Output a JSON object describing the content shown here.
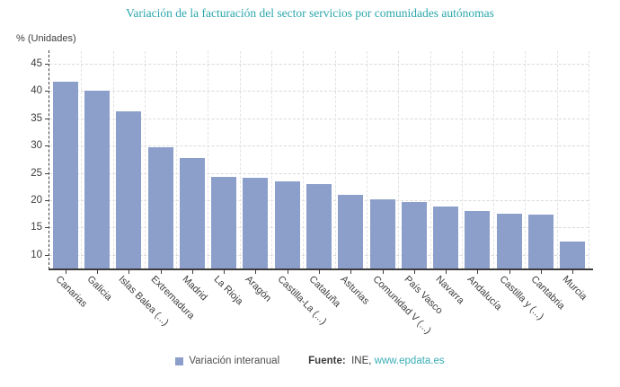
{
  "header": {
    "title": "Variación de la facturación del sector servicios por comunidades autónomas"
  },
  "source": {
    "label": "Fuente:",
    "org": "INE,",
    "link_text": "www.epdata.es"
  },
  "chart_data": {
    "type": "bar",
    "title": "Variación de la facturación del sector servicios por comunidades autónomas",
    "xlabel": "",
    "ylabel": "% (Unidades)",
    "categories": [
      "Canarias",
      "Galicia",
      "Islas Balea (...)",
      "Extremadura",
      "Madrid",
      "La Rioja",
      "Aragón",
      "Castilla-La (...)",
      "Cataluña",
      "Asturias",
      "Comunidad V (...)",
      "País Vasco",
      "Navarra",
      "Andalucía",
      "Castilla y (...)",
      "Cantabria",
      "Murcia"
    ],
    "series": [
      {
        "name": "Variación interanual",
        "values": [
          41.7,
          40.0,
          36.2,
          29.7,
          27.8,
          24.2,
          24.1,
          23.5,
          22.9,
          21.0,
          20.1,
          19.7,
          18.8,
          18.1,
          17.6,
          17.4,
          12.5
        ]
      }
    ],
    "ylim": [
      7.5,
      47.3
    ],
    "yticks": [
      10,
      15,
      20,
      25,
      30,
      35,
      40,
      45
    ],
    "grid": true,
    "legend_position": "bottom",
    "colors": {
      "bar": "#8C9FCB",
      "title": "#2BA6AB",
      "link": "#39AEB6",
      "text": "#3c3c3c",
      "grid": "#d9d9d9",
      "axis": "#3c3c3c"
    }
  }
}
